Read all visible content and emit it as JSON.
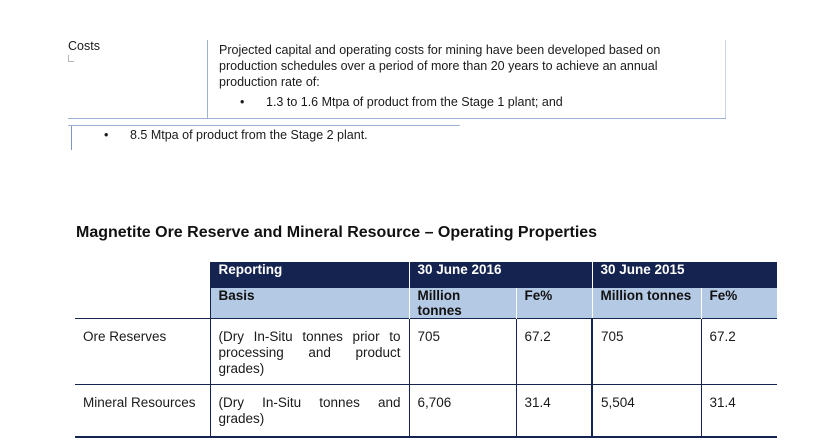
{
  "costs": {
    "label": "Costs",
    "paragraph": "Projected capital and operating costs for mining have been developed based on production schedules over a period of more than 20 years to achieve an annual production rate of:",
    "bullet_symbol": "•",
    "bullet1": "1.3 to 1.6 Mtpa of product from the Stage 1 plant; and",
    "bullet2": "8.5 Mtpa of product from the Stage 2 plant."
  },
  "section": {
    "title": "Magnetite Ore Reserve and Mineral Resource – Operating Properties"
  },
  "table": {
    "header1": {
      "reporting": "Reporting",
      "period_2016": "30 June 2016",
      "period_2015": "30 June 2015"
    },
    "header2": {
      "basis": "Basis",
      "mt_2016": "Million tonnes",
      "fe_2016": "Fe%",
      "mt_2015": "Million tonnes",
      "fe_2015": "Fe%"
    },
    "rows": [
      {
        "label": "Ore Reserves",
        "basis": "(Dry In-Situ tonnes prior to processing and product grades)",
        "mt_2016": "705",
        "fe_2016": "67.2",
        "mt_2015": "705",
        "fe_2015": "67.2"
      },
      {
        "label": "Mineral Resources",
        "basis": "(Dry In-Situ tonnes and grades)",
        "mt_2016": "6,706",
        "fe_2016": "31.4",
        "mt_2015": "5,504",
        "fe_2015": "31.4"
      }
    ]
  },
  "colors": {
    "header_dark": "#14234f",
    "header_light": "#b4c9e4",
    "rule": "#9cb3d6"
  }
}
